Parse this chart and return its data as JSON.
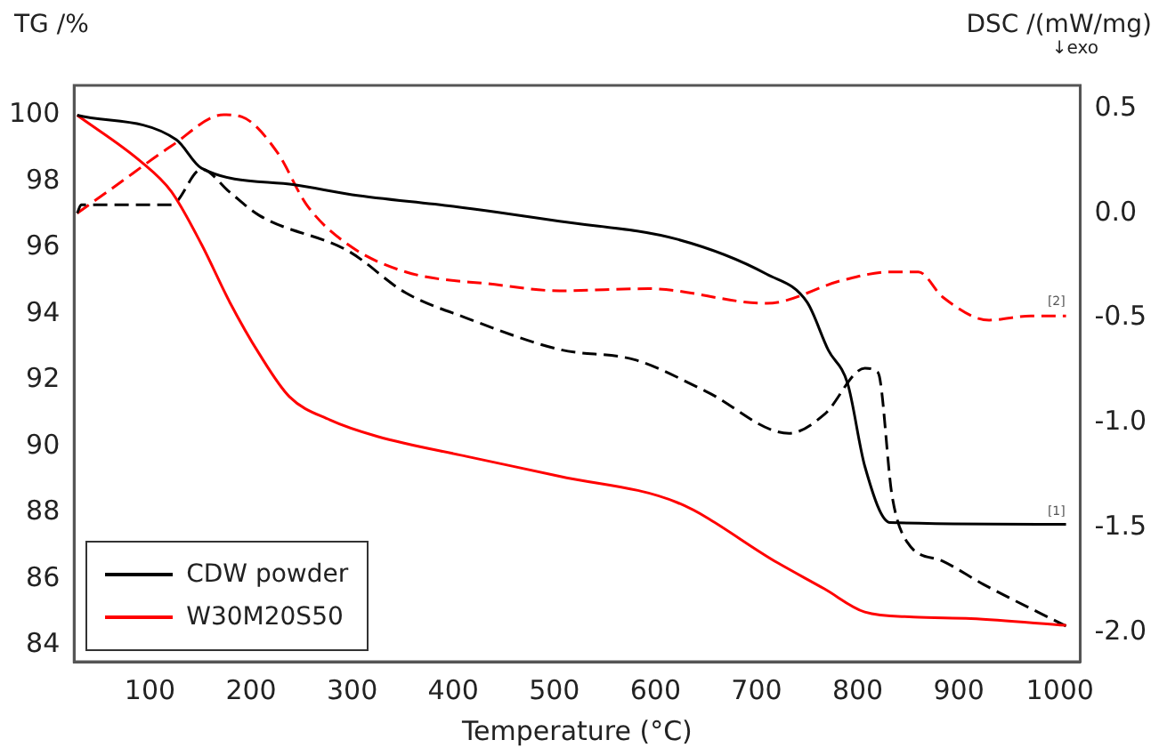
{
  "chart_data": {
    "type": "line",
    "xlabel": "Temperature (°C)",
    "ylabel": "TG /%",
    "y2label": "DSC /(mW/mg)",
    "annotations": [
      "↓exo",
      {
        "text": "[1]",
        "x": 1000,
        "y": 87.65
      },
      {
        "text": "[2]",
        "x": 1000,
        "y": 94.0
      }
    ],
    "xlim": [
      25,
      1020
    ],
    "xticks": [
      100,
      200,
      300,
      400,
      500,
      600,
      700,
      800,
      900,
      1000
    ],
    "ylim": [
      83.5,
      100.9
    ],
    "yticks": [
      84,
      86,
      88,
      90,
      92,
      94,
      96,
      98,
      100
    ],
    "y2lim": [
      -2.14,
      0.61
    ],
    "y2ticks": [
      {
        "value": -2,
        "label": "-2.0"
      },
      {
        "value": -1.5,
        "label": "-1.5"
      },
      {
        "value": -1,
        "label": "-1.0"
      },
      {
        "value": -0.5,
        "label": "-0.5"
      },
      {
        "value": 0,
        "label": "0.0"
      },
      {
        "value": 0.5,
        "label": "0.5"
      }
    ],
    "grid": false,
    "legend": "bottom left",
    "marker": "none",
    "series": [
      {
        "name": "CDW powder",
        "color": "#000000",
        "line_style": "solid",
        "x": [
          28,
          126,
          151,
          243,
          300,
          400,
          505,
          622,
          710,
          750,
          771,
          790,
          807,
          832,
          1006
        ],
        "values": [
          100,
          99.26,
          98.4,
          97.9,
          97.6,
          97.25,
          96.8,
          96.25,
          95.2,
          94.35,
          92.9,
          91.9,
          89.4,
          87.7,
          87.65
        ]
      },
      {
        "name": "W30M20S50",
        "color": "#ff0000",
        "line_style": "solid",
        "x": [
          28,
          91,
          121,
          151,
          179,
          208,
          238,
          278,
          325,
          413,
          505,
          622,
          720,
          767,
          807,
          855,
          912,
          1006
        ],
        "values": [
          100,
          98.6,
          97.7,
          96.1,
          94.35,
          92.8,
          91.5,
          90.8,
          90.3,
          89.7,
          89.1,
          88.3,
          86.5,
          85.7,
          85.0,
          84.85,
          84.8,
          84.6
        ]
      },
      {
        "color": "#000000",
        "line_style": "dashed",
        "axis": "y2",
        "x": [
          28,
          32,
          121,
          151,
          179,
          208,
          296,
          353,
          413,
          505,
          580,
          650,
          732,
          767,
          807,
          820,
          834,
          849,
          884,
          924,
          1006
        ],
        "values": [
          0.0,
          0.04,
          0.04,
          0.21,
          0.1,
          -0.01,
          -0.18,
          -0.38,
          -0.5,
          -0.65,
          -0.7,
          -0.85,
          -1.05,
          -0.96,
          -0.74,
          -0.76,
          -1.35,
          -1.57,
          -1.66,
          -1.77,
          -1.97
        ]
      },
      {
        "color": "#ff0000",
        "line_style": "dashed",
        "axis": "y2",
        "x": [
          28,
          63,
          121,
          173,
          191,
          226,
          255,
          296,
          353,
          441,
          505,
          593,
          710,
          785,
          832,
          860,
          884,
          930,
          971,
          1006
        ],
        "values": [
          0.0,
          0.12,
          0.32,
          0.47,
          0.46,
          0.29,
          0.04,
          -0.15,
          -0.28,
          -0.34,
          -0.37,
          -0.36,
          -0.43,
          -0.32,
          -0.28,
          -0.28,
          -0.4,
          -0.51,
          -0.49,
          -0.49
        ]
      }
    ]
  }
}
